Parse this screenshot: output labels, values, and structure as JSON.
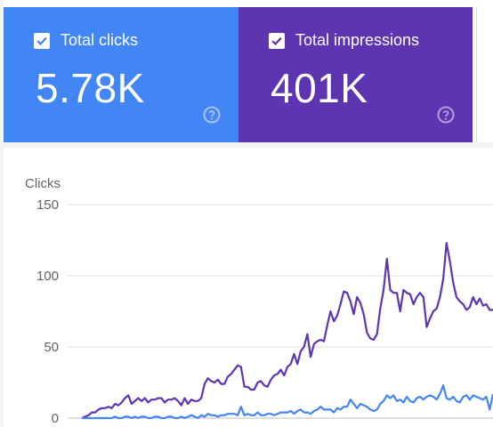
{
  "cards": [
    {
      "label": "Total clicks",
      "value": "5.78K",
      "color": "#4285f4",
      "checked": true
    },
    {
      "label": "Total impressions",
      "value": "401K",
      "color": "#5e35b1",
      "checked": true
    }
  ],
  "chart_data": {
    "type": "line",
    "ylabel": "Clicks",
    "ylim": [
      0,
      150
    ],
    "yticks": [
      "0",
      "50",
      "100",
      "150"
    ],
    "grid": true,
    "series": [
      {
        "color": "#5e35b1",
        "values": [
          0,
          1,
          2,
          4,
          4,
          6,
          7,
          7,
          8,
          7,
          10,
          9,
          11,
          14,
          16,
          10,
          12,
          14,
          12,
          14,
          11,
          13,
          13,
          14,
          14,
          11,
          13,
          13,
          14,
          12,
          9,
          14,
          10,
          13,
          12,
          12,
          14,
          24,
          28,
          26,
          25,
          27,
          24,
          24,
          29,
          31,
          34,
          37,
          36,
          22,
          22,
          20,
          20,
          25,
          26,
          23,
          22,
          27,
          30,
          31,
          34,
          30,
          36,
          38,
          45,
          38,
          47,
          50,
          59,
          43,
          52,
          54,
          55,
          54,
          65,
          75,
          68,
          72,
          80,
          89,
          88,
          82,
          73,
          85,
          81,
          73,
          60,
          56,
          55,
          59,
          77,
          90,
          112,
          90,
          88,
          88,
          75,
          90,
          88,
          87,
          80,
          85,
          88,
          85,
          64,
          70,
          75,
          77,
          85,
          98,
          123,
          110,
          95,
          85,
          82,
          80,
          76,
          78,
          85,
          80,
          84,
          79,
          80,
          76,
          76
        ]
      },
      {
        "color": "#4285f4",
        "values": [
          0,
          0,
          0,
          0,
          0,
          0,
          0,
          0,
          0,
          0,
          1,
          0,
          0,
          1,
          1,
          0,
          1,
          0,
          1,
          1,
          0,
          0,
          1,
          1,
          0,
          0,
          1,
          1,
          0,
          0,
          1,
          0,
          1,
          2,
          1,
          0,
          2,
          1,
          3,
          2,
          2,
          1,
          2,
          2,
          3,
          3,
          3,
          2,
          8,
          2,
          3,
          2,
          2,
          4,
          2,
          2,
          3,
          3,
          2,
          3,
          4,
          4,
          4,
          5,
          3,
          5,
          6,
          4,
          4,
          3,
          5,
          6,
          8,
          6,
          6,
          6,
          4,
          7,
          6,
          8,
          8,
          13,
          10,
          7,
          10,
          9,
          8,
          6,
          5,
          6,
          10,
          12,
          16,
          14,
          16,
          12,
          13,
          11,
          15,
          12,
          11,
          14,
          15,
          13,
          15,
          16,
          15,
          13,
          17,
          23,
          14,
          13,
          15,
          12,
          11,
          15,
          16,
          13,
          16,
          15,
          14,
          13,
          15,
          6,
          17
        ]
      }
    ]
  }
}
